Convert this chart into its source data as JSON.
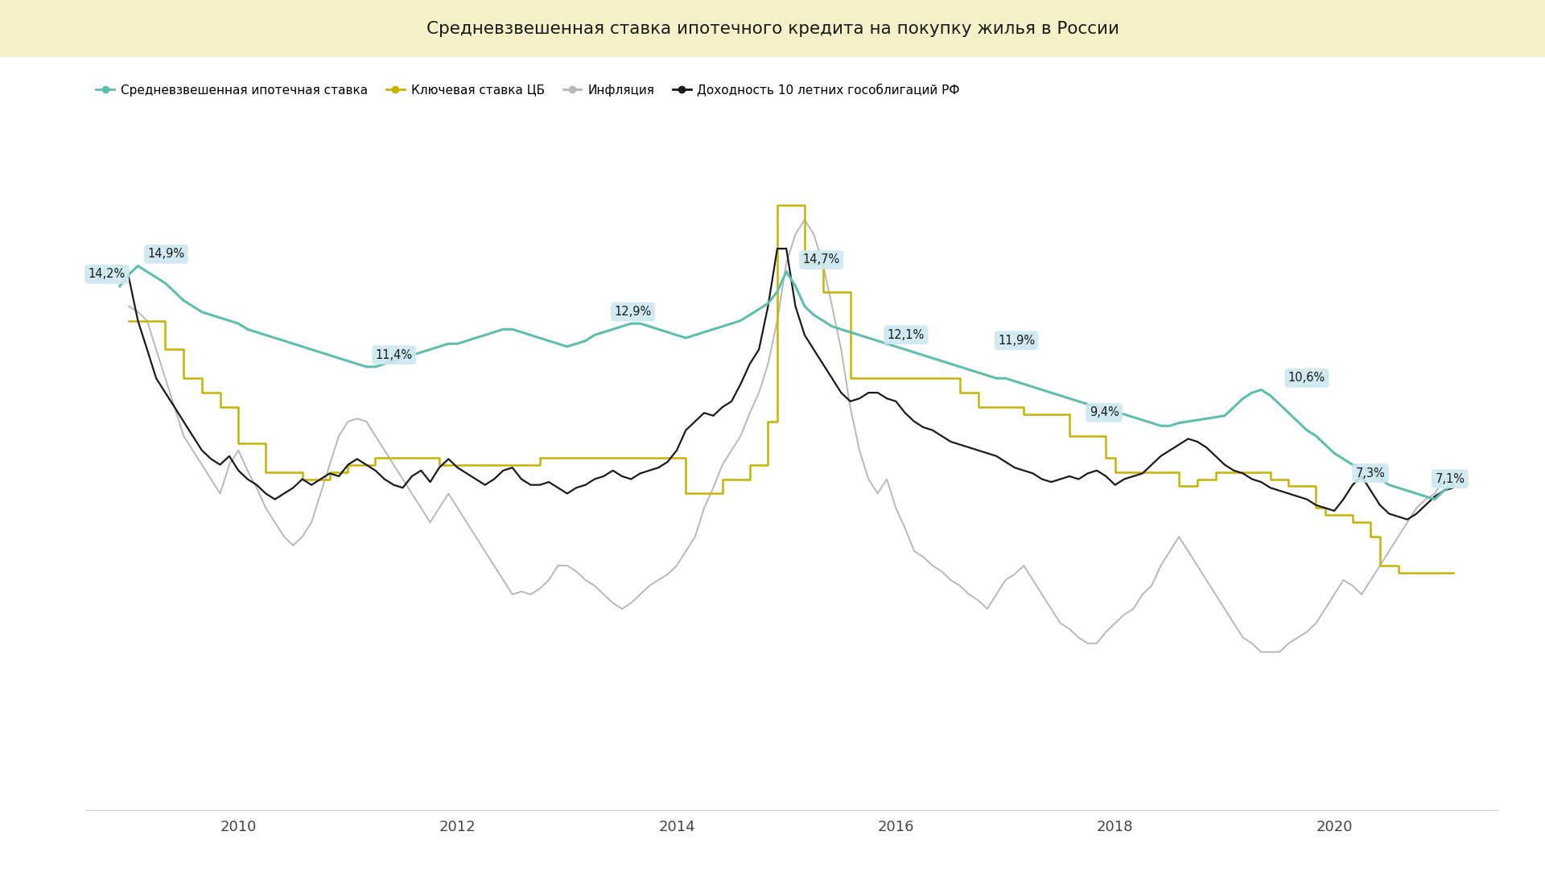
{
  "title": "Средневзвешенная ставка ипотечного кредита на покупку жилья в России",
  "title_bg": "#f5f0c8",
  "bg_color": "#ffffff",
  "legend_items": [
    {
      "label": "Средневзвешенная ипотечная ставка",
      "color": "#5bbfb0",
      "lw": 2.2
    },
    {
      "label": "Ключевая ставка ЦБ",
      "color": "#c8b400",
      "lw": 1.8
    },
    {
      "label": "Инфляция",
      "color": "#b8b8b8",
      "lw": 1.4
    },
    {
      "label": "Доходность 10 летних гособлигаций РФ",
      "color": "#1a1a1a",
      "lw": 1.6
    }
  ],
  "xlim": [
    2008.6,
    2021.5
  ],
  "ylim": [
    -4,
    20
  ],
  "xticks": [
    2010,
    2012,
    2014,
    2016,
    2018,
    2020
  ],
  "mortgage_rate": {
    "t": [
      2008.917,
      2009.0,
      2009.083,
      2009.167,
      2009.25,
      2009.333,
      2009.417,
      2009.5,
      2009.583,
      2009.667,
      2009.75,
      2009.833,
      2009.917,
      2010.0,
      2010.083,
      2010.167,
      2010.25,
      2010.333,
      2010.417,
      2010.5,
      2010.583,
      2010.667,
      2010.75,
      2010.833,
      2010.917,
      2011.0,
      2011.083,
      2011.167,
      2011.25,
      2011.333,
      2011.417,
      2011.5,
      2011.583,
      2011.667,
      2011.75,
      2011.833,
      2011.917,
      2012.0,
      2012.083,
      2012.167,
      2012.25,
      2012.333,
      2012.417,
      2012.5,
      2012.583,
      2012.667,
      2012.75,
      2012.833,
      2012.917,
      2013.0,
      2013.083,
      2013.167,
      2013.25,
      2013.333,
      2013.417,
      2013.5,
      2013.583,
      2013.667,
      2013.75,
      2013.833,
      2013.917,
      2014.0,
      2014.083,
      2014.167,
      2014.25,
      2014.333,
      2014.417,
      2014.5,
      2014.583,
      2014.667,
      2014.75,
      2014.833,
      2014.917,
      2015.0,
      2015.083,
      2015.167,
      2015.25,
      2015.333,
      2015.417,
      2015.5,
      2015.583,
      2015.667,
      2015.75,
      2015.833,
      2015.917,
      2016.0,
      2016.083,
      2016.167,
      2016.25,
      2016.333,
      2016.417,
      2016.5,
      2016.583,
      2016.667,
      2016.75,
      2016.833,
      2016.917,
      2017.0,
      2017.083,
      2017.167,
      2017.25,
      2017.333,
      2017.417,
      2017.5,
      2017.583,
      2017.667,
      2017.75,
      2017.833,
      2017.917,
      2018.0,
      2018.083,
      2018.167,
      2018.25,
      2018.333,
      2018.417,
      2018.5,
      2018.583,
      2018.667,
      2018.75,
      2018.833,
      2018.917,
      2019.0,
      2019.083,
      2019.167,
      2019.25,
      2019.333,
      2019.417,
      2019.5,
      2019.583,
      2019.667,
      2019.75,
      2019.833,
      2019.917,
      2020.0,
      2020.083,
      2020.167,
      2020.25,
      2020.333,
      2020.417,
      2020.5,
      2020.583,
      2020.667,
      2020.75,
      2020.833,
      2020.917,
      2021.0,
      2021.083
    ],
    "v": [
      14.2,
      14.6,
      14.9,
      14.7,
      14.5,
      14.3,
      14.0,
      13.7,
      13.5,
      13.3,
      13.2,
      13.1,
      13.0,
      12.9,
      12.7,
      12.6,
      12.5,
      12.4,
      12.3,
      12.2,
      12.1,
      12.0,
      11.9,
      11.8,
      11.7,
      11.6,
      11.5,
      11.4,
      11.4,
      11.5,
      11.6,
      11.7,
      11.8,
      11.9,
      12.0,
      12.1,
      12.2,
      12.2,
      12.3,
      12.4,
      12.5,
      12.6,
      12.7,
      12.7,
      12.6,
      12.5,
      12.4,
      12.3,
      12.2,
      12.1,
      12.2,
      12.3,
      12.5,
      12.6,
      12.7,
      12.8,
      12.9,
      12.9,
      12.8,
      12.7,
      12.6,
      12.5,
      12.4,
      12.5,
      12.6,
      12.7,
      12.8,
      12.9,
      13.0,
      13.2,
      13.4,
      13.6,
      14.0,
      14.7,
      14.2,
      13.5,
      13.2,
      13.0,
      12.8,
      12.7,
      12.6,
      12.5,
      12.4,
      12.3,
      12.2,
      12.1,
      12.0,
      11.9,
      11.8,
      11.7,
      11.6,
      11.5,
      11.4,
      11.3,
      11.2,
      11.1,
      11.0,
      11.0,
      10.9,
      10.8,
      10.7,
      10.6,
      10.5,
      10.4,
      10.3,
      10.2,
      10.1,
      10.0,
      9.9,
      9.85,
      9.75,
      9.65,
      9.55,
      9.45,
      9.35,
      9.35,
      9.45,
      9.5,
      9.55,
      9.6,
      9.65,
      9.7,
      10.0,
      10.3,
      10.5,
      10.6,
      10.4,
      10.1,
      9.8,
      9.5,
      9.2,
      9.0,
      8.7,
      8.4,
      8.2,
      8.0,
      7.9,
      7.8,
      7.5,
      7.3,
      7.2,
      7.1,
      7.0,
      6.9,
      6.8,
      7.1,
      7.3
    ]
  },
  "key_rate": {
    "t": [
      2009.0,
      2009.333,
      2009.5,
      2009.667,
      2009.833,
      2010.0,
      2010.25,
      2010.583,
      2010.833,
      2011.0,
      2011.25,
      2011.583,
      2011.833,
      2012.0,
      2012.583,
      2012.75,
      2013.0,
      2013.75,
      2014.0,
      2014.083,
      2014.417,
      2014.667,
      2014.833,
      2014.917,
      2015.0,
      2015.167,
      2015.333,
      2015.583,
      2016.0,
      2016.583,
      2016.75,
      2016.917,
      2017.167,
      2017.583,
      2017.917,
      2018.0,
      2018.583,
      2018.75,
      2018.917,
      2019.167,
      2019.417,
      2019.583,
      2019.833,
      2019.917,
      2020.083,
      2020.167,
      2020.333,
      2020.417,
      2020.583,
      2020.833,
      2021.083
    ],
    "v": [
      13.0,
      12.0,
      11.0,
      10.5,
      10.0,
      8.75,
      7.75,
      7.5,
      7.75,
      8.0,
      8.25,
      8.25,
      8.0,
      8.0,
      8.0,
      8.25,
      8.25,
      8.25,
      8.25,
      7.0,
      7.5,
      8.0,
      9.5,
      17.0,
      17.0,
      15.0,
      14.0,
      11.0,
      11.0,
      10.5,
      10.0,
      10.0,
      9.75,
      9.0,
      8.25,
      7.75,
      7.25,
      7.5,
      7.75,
      7.75,
      7.5,
      7.25,
      6.5,
      6.25,
      6.25,
      6.0,
      5.5,
      4.5,
      4.25,
      4.25,
      4.25
    ]
  },
  "inflation": {
    "t": [
      2009.0,
      2009.083,
      2009.167,
      2009.25,
      2009.333,
      2009.417,
      2009.5,
      2009.583,
      2009.667,
      2009.75,
      2009.833,
      2009.917,
      2010.0,
      2010.083,
      2010.167,
      2010.25,
      2010.333,
      2010.417,
      2010.5,
      2010.583,
      2010.667,
      2010.75,
      2010.833,
      2010.917,
      2011.0,
      2011.083,
      2011.167,
      2011.25,
      2011.333,
      2011.417,
      2011.5,
      2011.583,
      2011.667,
      2011.75,
      2011.833,
      2011.917,
      2012.0,
      2012.083,
      2012.167,
      2012.25,
      2012.333,
      2012.417,
      2012.5,
      2012.583,
      2012.667,
      2012.75,
      2012.833,
      2012.917,
      2013.0,
      2013.083,
      2013.167,
      2013.25,
      2013.333,
      2013.417,
      2013.5,
      2013.583,
      2013.667,
      2013.75,
      2013.833,
      2013.917,
      2014.0,
      2014.083,
      2014.167,
      2014.25,
      2014.333,
      2014.417,
      2014.5,
      2014.583,
      2014.667,
      2014.75,
      2014.833,
      2014.917,
      2015.0,
      2015.083,
      2015.167,
      2015.25,
      2015.333,
      2015.417,
      2015.5,
      2015.583,
      2015.667,
      2015.75,
      2015.833,
      2015.917,
      2016.0,
      2016.083,
      2016.167,
      2016.25,
      2016.333,
      2016.417,
      2016.5,
      2016.583,
      2016.667,
      2016.75,
      2016.833,
      2016.917,
      2017.0,
      2017.083,
      2017.167,
      2017.25,
      2017.333,
      2017.417,
      2017.5,
      2017.583,
      2017.667,
      2017.75,
      2017.833,
      2017.917,
      2018.0,
      2018.083,
      2018.167,
      2018.25,
      2018.333,
      2018.417,
      2018.5,
      2018.583,
      2018.667,
      2018.75,
      2018.833,
      2018.917,
      2019.0,
      2019.083,
      2019.167,
      2019.25,
      2019.333,
      2019.417,
      2019.5,
      2019.583,
      2019.667,
      2019.75,
      2019.833,
      2019.917,
      2020.0,
      2020.083,
      2020.167,
      2020.25,
      2020.333,
      2020.417,
      2020.5,
      2020.583,
      2020.667,
      2020.75,
      2020.833,
      2020.917,
      2021.0,
      2021.083
    ],
    "v": [
      13.5,
      13.3,
      13.0,
      12.0,
      11.0,
      10.0,
      9.0,
      8.5,
      8.0,
      7.5,
      7.0,
      8.0,
      8.5,
      7.8,
      7.2,
      6.5,
      6.0,
      5.5,
      5.2,
      5.5,
      6.0,
      7.0,
      8.0,
      9.0,
      9.5,
      9.6,
      9.5,
      9.0,
      8.5,
      8.0,
      7.5,
      7.0,
      6.5,
      6.0,
      6.5,
      7.0,
      6.5,
      6.0,
      5.5,
      5.0,
      4.5,
      4.0,
      3.5,
      3.6,
      3.5,
      3.7,
      4.0,
      4.5,
      4.5,
      4.3,
      4.0,
      3.8,
      3.5,
      3.2,
      3.0,
      3.2,
      3.5,
      3.8,
      4.0,
      4.2,
      4.5,
      5.0,
      5.5,
      6.5,
      7.2,
      8.0,
      8.5,
      9.0,
      9.8,
      10.5,
      11.5,
      13.0,
      15.0,
      16.0,
      16.5,
      16.0,
      15.0,
      13.5,
      12.0,
      10.0,
      8.5,
      7.5,
      7.0,
      7.5,
      6.5,
      5.8,
      5.0,
      4.8,
      4.5,
      4.3,
      4.0,
      3.8,
      3.5,
      3.3,
      3.0,
      3.5,
      4.0,
      4.2,
      4.5,
      4.0,
      3.5,
      3.0,
      2.5,
      2.3,
      2.0,
      1.8,
      1.8,
      2.2,
      2.5,
      2.8,
      3.0,
      3.5,
      3.8,
      4.5,
      5.0,
      5.5,
      5.0,
      4.5,
      4.0,
      3.5,
      3.0,
      2.5,
      2.0,
      1.8,
      1.5,
      1.5,
      1.5,
      1.8,
      2.0,
      2.2,
      2.5,
      3.0,
      3.5,
      4.0,
      3.8,
      3.5,
      4.0,
      4.5,
      5.0,
      5.5,
      6.0,
      6.5,
      6.8,
      7.0,
      7.5,
      7.5
    ]
  },
  "bond_yield": {
    "t": [
      2009.0,
      2009.083,
      2009.167,
      2009.25,
      2009.333,
      2009.417,
      2009.5,
      2009.583,
      2009.667,
      2009.75,
      2009.833,
      2009.917,
      2010.0,
      2010.083,
      2010.167,
      2010.25,
      2010.333,
      2010.417,
      2010.5,
      2010.583,
      2010.667,
      2010.75,
      2010.833,
      2010.917,
      2011.0,
      2011.083,
      2011.167,
      2011.25,
      2011.333,
      2011.417,
      2011.5,
      2011.583,
      2011.667,
      2011.75,
      2011.833,
      2011.917,
      2012.0,
      2012.083,
      2012.167,
      2012.25,
      2012.333,
      2012.417,
      2012.5,
      2012.583,
      2012.667,
      2012.75,
      2012.833,
      2012.917,
      2013.0,
      2013.083,
      2013.167,
      2013.25,
      2013.333,
      2013.417,
      2013.5,
      2013.583,
      2013.667,
      2013.75,
      2013.833,
      2013.917,
      2014.0,
      2014.083,
      2014.167,
      2014.25,
      2014.333,
      2014.417,
      2014.5,
      2014.583,
      2014.667,
      2014.75,
      2014.833,
      2014.917,
      2015.0,
      2015.083,
      2015.167,
      2015.25,
      2015.333,
      2015.417,
      2015.5,
      2015.583,
      2015.667,
      2015.75,
      2015.833,
      2015.917,
      2016.0,
      2016.083,
      2016.167,
      2016.25,
      2016.333,
      2016.417,
      2016.5,
      2016.583,
      2016.667,
      2016.75,
      2016.833,
      2016.917,
      2017.0,
      2017.083,
      2017.167,
      2017.25,
      2017.333,
      2017.417,
      2017.5,
      2017.583,
      2017.667,
      2017.75,
      2017.833,
      2017.917,
      2018.0,
      2018.083,
      2018.167,
      2018.25,
      2018.333,
      2018.417,
      2018.5,
      2018.583,
      2018.667,
      2018.75,
      2018.833,
      2018.917,
      2019.0,
      2019.083,
      2019.167,
      2019.25,
      2019.333,
      2019.417,
      2019.5,
      2019.583,
      2019.667,
      2019.75,
      2019.833,
      2019.917,
      2020.0,
      2020.083,
      2020.167,
      2020.25,
      2020.333,
      2020.417,
      2020.5,
      2020.583,
      2020.667,
      2020.75,
      2020.833,
      2020.917,
      2021.0,
      2021.083
    ],
    "v": [
      14.5,
      13.0,
      12.0,
      11.0,
      10.5,
      10.0,
      9.5,
      9.0,
      8.5,
      8.2,
      8.0,
      8.3,
      7.8,
      7.5,
      7.3,
      7.0,
      6.8,
      7.0,
      7.2,
      7.5,
      7.3,
      7.5,
      7.7,
      7.6,
      8.0,
      8.2,
      8.0,
      7.8,
      7.5,
      7.3,
      7.2,
      7.6,
      7.8,
      7.4,
      7.9,
      8.2,
      7.9,
      7.7,
      7.5,
      7.3,
      7.5,
      7.8,
      7.9,
      7.5,
      7.3,
      7.3,
      7.4,
      7.2,
      7.0,
      7.2,
      7.3,
      7.5,
      7.6,
      7.8,
      7.6,
      7.5,
      7.7,
      7.8,
      7.9,
      8.1,
      8.5,
      9.2,
      9.5,
      9.8,
      9.7,
      10.0,
      10.2,
      10.8,
      11.5,
      12.0,
      13.5,
      15.5,
      15.5,
      13.5,
      12.5,
      12.0,
      11.5,
      11.0,
      10.5,
      10.2,
      10.3,
      10.5,
      10.5,
      10.3,
      10.2,
      9.8,
      9.5,
      9.3,
      9.2,
      9.0,
      8.8,
      8.7,
      8.6,
      8.5,
      8.4,
      8.3,
      8.1,
      7.9,
      7.8,
      7.7,
      7.5,
      7.4,
      7.5,
      7.6,
      7.5,
      7.7,
      7.8,
      7.6,
      7.3,
      7.5,
      7.6,
      7.7,
      8.0,
      8.3,
      8.5,
      8.7,
      8.9,
      8.8,
      8.6,
      8.3,
      8.0,
      7.8,
      7.7,
      7.5,
      7.4,
      7.2,
      7.1,
      7.0,
      6.9,
      6.8,
      6.6,
      6.5,
      6.4,
      6.8,
      7.3,
      7.6,
      7.1,
      6.6,
      6.3,
      6.2,
      6.1,
      6.3,
      6.6,
      6.9,
      7.1,
      7.2
    ]
  }
}
